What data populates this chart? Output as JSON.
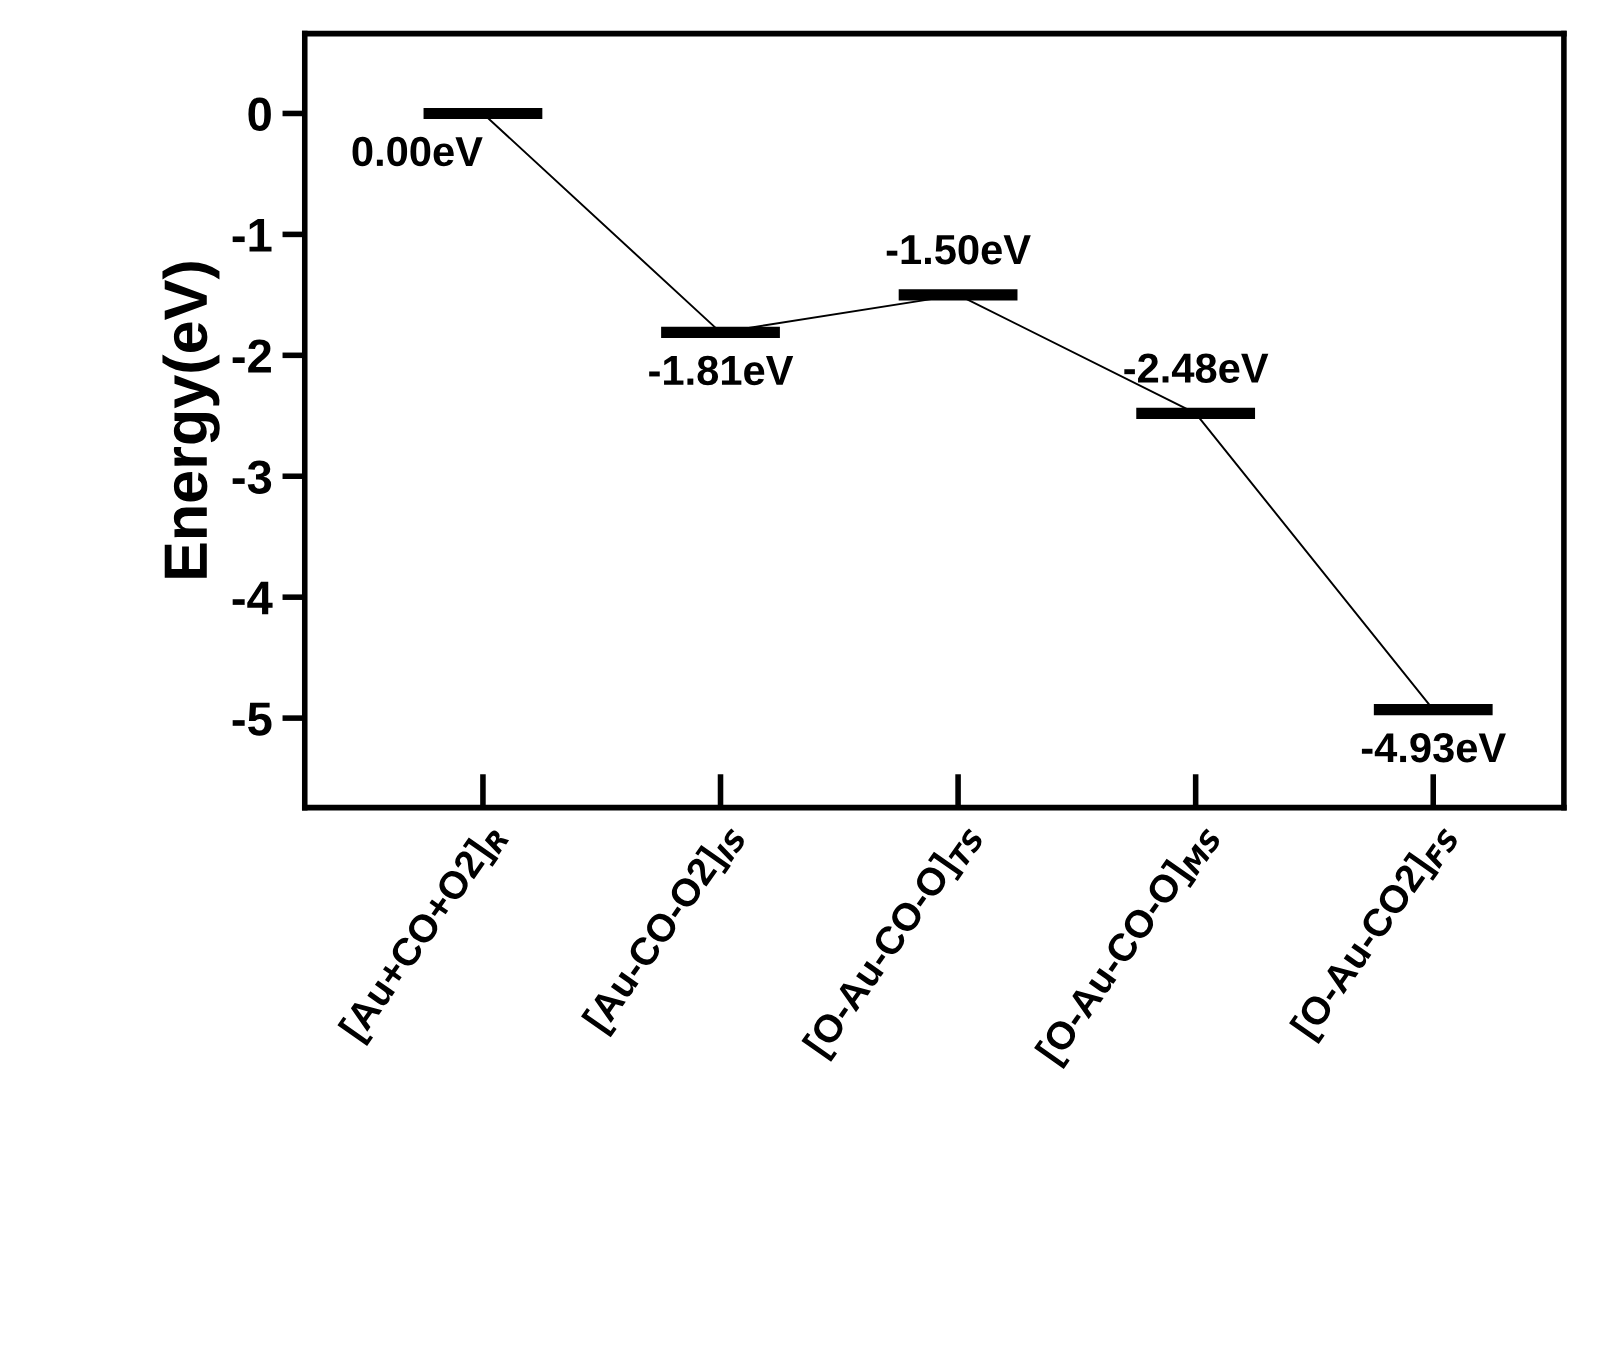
{
  "chart_data": {
    "type": "line",
    "ylabel": "Energy(eV)",
    "categories": [
      "[Au+CO+O2]$_{R}$",
      "[Au-CO-O2]$_{IS}$",
      "[O-Au-CO-O]$_{TS}$",
      "[O-Au-CO-O]$_{MS}$",
      "[O-Au-CO2]$_{FS}$"
    ],
    "series": [
      {
        "color": "#000000",
        "values": [
          0.0,
          -1.81,
          -1.5,
          -2.48,
          -4.93
        ],
        "value_labels": [
          "0.00eV",
          "-1.81eV",
          "-1.50eV",
          "-2.48eV",
          "-4.93eV"
        ]
      }
    ],
    "ylim": [
      -5.74,
      0.66
    ],
    "yticks": [
      {
        "value": 0,
        "label": "0"
      },
      {
        "value": -1,
        "label": "-1"
      },
      {
        "value": -2,
        "label": "-2"
      },
      {
        "value": -3,
        "label": "-3"
      },
      {
        "value": -4,
        "label": "-4"
      },
      {
        "value": -5,
        "label": "-5"
      }
    ],
    "grid": false,
    "legend": false,
    "marker": "none",
    "line_style": "solid"
  }
}
